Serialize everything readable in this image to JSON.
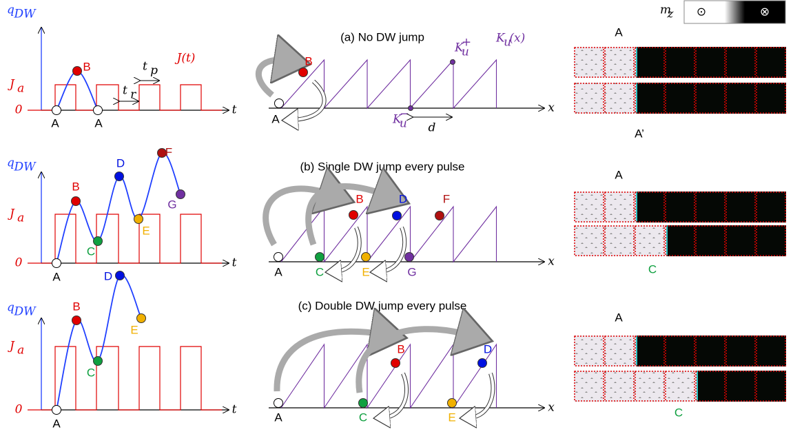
{
  "legend": {
    "symbol": {
      "main": "m",
      "sub": "z"
    },
    "up": "⊙",
    "down": "⊗"
  },
  "rows": [
    {
      "time_plot": {
        "y_axis": {
          "main": "q",
          "sub": "DW"
        },
        "level": {
          "main": "J",
          "sub": "a"
        },
        "zero": "0",
        "x_axis": "t",
        "signal": "J(t)",
        "pulse_width": {
          "main": "t",
          "sub": "p"
        },
        "rest_time": {
          "main": "t",
          "sub": "r"
        },
        "points": [
          {
            "label": "A",
            "color": "#ffffff"
          },
          {
            "label": "B",
            "color": "#e00000"
          },
          {
            "label": "A",
            "color": "#ffffff"
          }
        ]
      },
      "energy_plot": {
        "title": "(a) No DW jump",
        "x_axis": "x",
        "profile": {
          "main": "K",
          "sub": "u",
          "rest": "(x)"
        },
        "kplus": {
          "main": "K",
          "sub": "u",
          "sup": "+"
        },
        "kminus": {
          "main": "K",
          "sub": "u",
          "sup": "−"
        },
        "period": "d",
        "points": [
          {
            "label": "B",
            "color": "#e00000"
          },
          {
            "label": "A",
            "color": "#ffffff"
          }
        ]
      },
      "images": {
        "top": "A",
        "bottom": "A’"
      }
    },
    {
      "time_plot": {
        "y_axis": {
          "main": "q",
          "sub": "DW"
        },
        "level": {
          "main": "J",
          "sub": "a"
        },
        "zero": "0",
        "x_axis": "t",
        "points": [
          {
            "label": "A",
            "color": "#ffffff"
          },
          {
            "label": "B",
            "color": "#e00000"
          },
          {
            "label": "C",
            "color": "#10a040"
          },
          {
            "label": "D",
            "color": "#0010e0"
          },
          {
            "label": "E",
            "color": "#f0b000"
          },
          {
            "label": "F",
            "color": "#b01010"
          },
          {
            "label": "G",
            "color": "#7030a0"
          }
        ]
      },
      "energy_plot": {
        "title": "(b) Single DW jump every pulse",
        "x_axis": "x",
        "points": [
          {
            "label": "B",
            "color": "#e00000"
          },
          {
            "label": "D",
            "color": "#0010e0"
          },
          {
            "label": "F",
            "color": "#b01010"
          },
          {
            "label": "A",
            "color": "#ffffff"
          },
          {
            "label": "C",
            "color": "#10a040"
          },
          {
            "label": "E",
            "color": "#f0b000"
          },
          {
            "label": "G",
            "color": "#7030a0"
          }
        ]
      },
      "images": {
        "top": "A",
        "bottom": "C"
      }
    },
    {
      "time_plot": {
        "y_axis": {
          "main": "q",
          "sub": "DW"
        },
        "level": {
          "main": "J",
          "sub": "a"
        },
        "zero": "0",
        "x_axis": "t",
        "points": [
          {
            "label": "A",
            "color": "#ffffff"
          },
          {
            "label": "B",
            "color": "#e00000"
          },
          {
            "label": "C",
            "color": "#10a040"
          },
          {
            "label": "D",
            "color": "#0010e0"
          },
          {
            "label": "E",
            "color": "#f0b000"
          }
        ]
      },
      "energy_plot": {
        "title": "(c) Double DW jump every pulse",
        "x_axis": "x",
        "points": [
          {
            "label": "B",
            "color": "#e00000"
          },
          {
            "label": "D",
            "color": "#0010e0"
          },
          {
            "label": "A",
            "color": "#ffffff"
          },
          {
            "label": "C",
            "color": "#10a040"
          },
          {
            "label": "E",
            "color": "#f0b000"
          }
        ]
      },
      "images": {
        "top": "A",
        "bottom": "C"
      }
    }
  ]
}
